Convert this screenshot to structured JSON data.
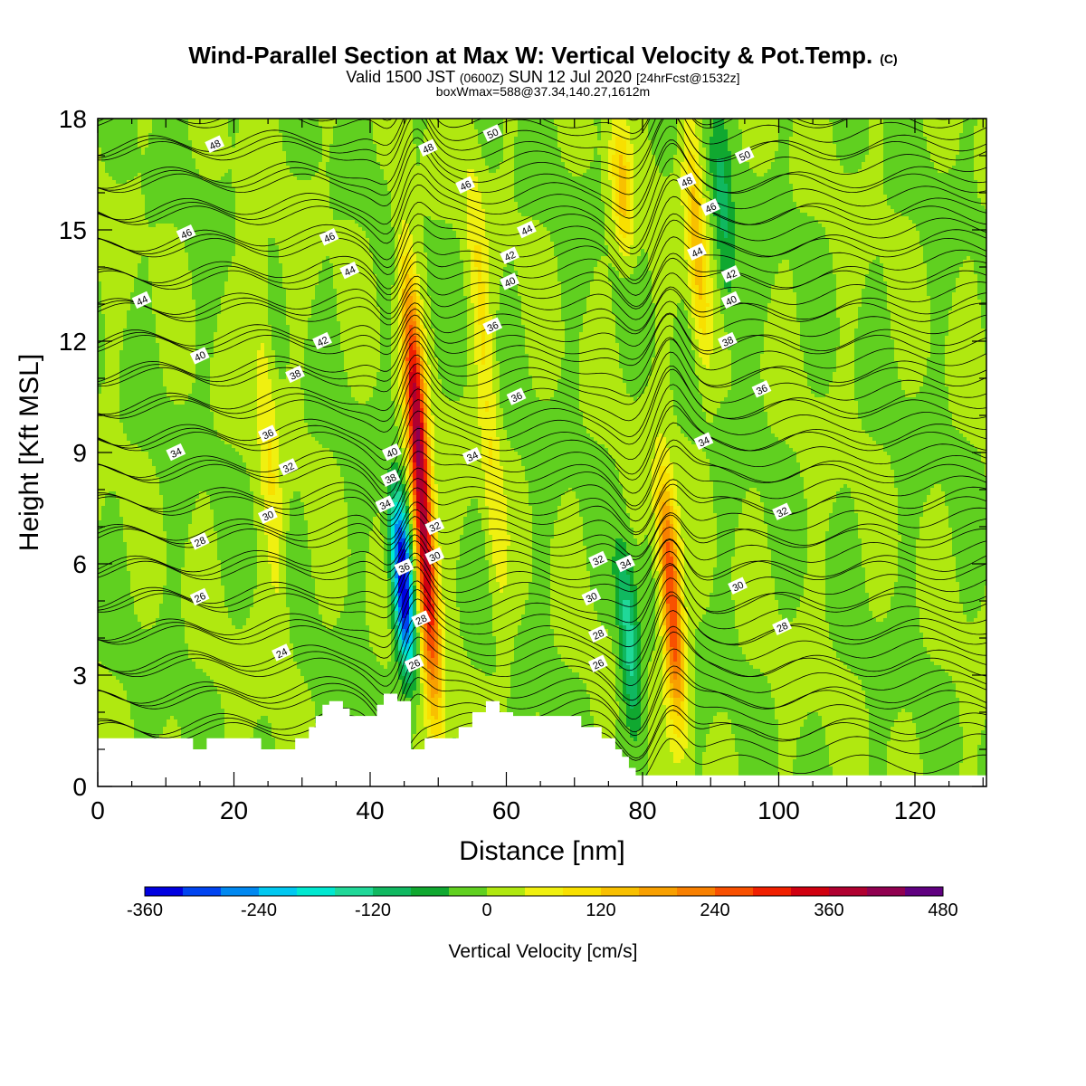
{
  "header": {
    "title_main": "Wind-Parallel Section at Max W: Vertical Velocity & Pot.Temp.",
    "title_mark": "(C)",
    "subtitle_a": "Valid 1500 JST ",
    "subtitle_b": "(0600Z)",
    "subtitle_c": " SUN 12 Jul 2020 ",
    "subtitle_d": "[24hrFcst@1532z]",
    "info": "boxWmax=588@37.34,140.27,1612m"
  },
  "chart_data": {
    "type": "heatmap",
    "title": "Wind-Parallel Section at Max W: Vertical Velocity & Pot.Temp.",
    "xlabel": "Distance [nm]",
    "ylabel": "Height [Kft MSL]",
    "xlim": [
      0,
      130.5
    ],
    "ylim": [
      0,
      18
    ],
    "xticks": [
      "0",
      "20",
      "40",
      "60",
      "80",
      "100",
      "120"
    ],
    "yticks": [
      "0",
      "3",
      "6",
      "9",
      "12",
      "15",
      "18"
    ],
    "colorbar": {
      "label": "Vertical Velocity [cm/s]",
      "tick_labels": [
        "-360",
        "-240",
        "-120",
        "0",
        "120",
        "240",
        "360",
        "480"
      ],
      "levels": [
        -360,
        -320,
        -280,
        -240,
        -200,
        -160,
        -120,
        -80,
        -40,
        0,
        40,
        80,
        120,
        160,
        200,
        240,
        280,
        320,
        360,
        400,
        440,
        480
      ],
      "colors": [
        "#0000e0",
        "#0044f0",
        "#0088f0",
        "#00c8f0",
        "#00e8d0",
        "#20d898",
        "#10b860",
        "#10a830",
        "#60d020",
        "#b0e810",
        "#f0f010",
        "#f8e000",
        "#f8c000",
        "#f8a000",
        "#f88000",
        "#f85000",
        "#f02000",
        "#d00010",
        "#b00030",
        "#900050",
        "#600080"
      ]
    },
    "w_features": [
      {
        "kind": "updraft",
        "x": 47.5,
        "z_bottom": 2.0,
        "z_top": 13.8,
        "peak_cm_s": 420
      },
      {
        "kind": "downdraft",
        "x": 44.8,
        "z_bottom": 3.0,
        "z_top": 8.0,
        "peak_cm_s": -380
      },
      {
        "kind": "updraft",
        "x": 84.2,
        "z_bottom": 1.6,
        "z_top": 8.5,
        "peak_cm_s": 300
      },
      {
        "kind": "downdraft",
        "x": 78.0,
        "z_bottom": 1.5,
        "z_top": 6.5,
        "peak_cm_s": -150
      },
      {
        "kind": "updraft",
        "x": 77.0,
        "z_bottom": 14.0,
        "z_top": 18.0,
        "peak_cm_s": 130
      },
      {
        "kind": "updraft",
        "x": 88.0,
        "z_bottom": 11.0,
        "z_top": 18.0,
        "peak_cm_s": 140
      },
      {
        "kind": "updraft",
        "x": 57.0,
        "z_bottom": 4.0,
        "z_top": 18.0,
        "peak_cm_s": 80
      },
      {
        "kind": "updraft",
        "x": 25.0,
        "z_bottom": 3.0,
        "z_top": 16.0,
        "peak_cm_s": 70
      },
      {
        "kind": "downdraft",
        "x": 92.0,
        "z_bottom": 12.0,
        "z_top": 18.0,
        "peak_cm_s": -90
      }
    ],
    "terrain": {
      "x": [
        0,
        14,
        14,
        16,
        16,
        24,
        24,
        29,
        29,
        31,
        31,
        32,
        32,
        33,
        33,
        34,
        34,
        36,
        36,
        37,
        37,
        41,
        41,
        42,
        42,
        44,
        44,
        46,
        46,
        48,
        48,
        53,
        53,
        55,
        55,
        57,
        57,
        59,
        59,
        61,
        61,
        71,
        71,
        74,
        74,
        76,
        76,
        77,
        77,
        78,
        78,
        79,
        79,
        80,
        80,
        130.5
      ],
      "z": [
        1.3,
        1.3,
        1.0,
        1.0,
        1.3,
        1.3,
        1.0,
        1.0,
        1.3,
        1.3,
        1.6,
        1.6,
        1.9,
        1.9,
        2.2,
        2.2,
        2.3,
        2.3,
        2.1,
        2.1,
        1.9,
        1.9,
        2.2,
        2.2,
        2.5,
        2.5,
        2.3,
        2.3,
        1.0,
        1.0,
        1.3,
        1.3,
        1.6,
        1.6,
        2.0,
        2.0,
        2.3,
        2.3,
        2.0,
        2.0,
        1.9,
        1.9,
        1.6,
        1.6,
        1.3,
        1.3,
        1.0,
        1.0,
        0.8,
        0.8,
        0.5,
        0.5,
        0.3,
        0.3,
        0.3,
        0.3
      ]
    },
    "theta_contour_labels": [
      {
        "value": "48",
        "x": 17.2,
        "z": 17.3
      },
      {
        "value": "46",
        "x": 13.0,
        "z": 14.9
      },
      {
        "value": "44",
        "x": 6.5,
        "z": 13.1
      },
      {
        "value": "40",
        "x": 15.0,
        "z": 11.6
      },
      {
        "value": "34",
        "x": 11.5,
        "z": 9.0
      },
      {
        "value": "28",
        "x": 15.0,
        "z": 6.6
      },
      {
        "value": "26",
        "x": 15.0,
        "z": 5.1
      },
      {
        "value": "24",
        "x": 27.0,
        "z": 3.6
      },
      {
        "value": "30",
        "x": 25.0,
        "z": 7.3
      },
      {
        "value": "32",
        "x": 28.0,
        "z": 8.6
      },
      {
        "value": "36",
        "x": 25.0,
        "z": 9.5
      },
      {
        "value": "38",
        "x": 29.0,
        "z": 11.1
      },
      {
        "value": "42",
        "x": 33.0,
        "z": 12.0
      },
      {
        "value": "44",
        "x": 37.0,
        "z": 13.9
      },
      {
        "value": "46",
        "x": 34.0,
        "z": 14.8
      },
      {
        "value": "40",
        "x": 43.2,
        "z": 9.0
      },
      {
        "value": "38",
        "x": 43.0,
        "z": 8.3
      },
      {
        "value": "34",
        "x": 42.2,
        "z": 7.6
      },
      {
        "value": "36",
        "x": 45.0,
        "z": 5.9
      },
      {
        "value": "28",
        "x": 47.5,
        "z": 4.5
      },
      {
        "value": "26",
        "x": 46.5,
        "z": 3.3
      },
      {
        "value": "32",
        "x": 49.5,
        "z": 7.0
      },
      {
        "value": "30",
        "x": 49.5,
        "z": 6.2
      },
      {
        "value": "34",
        "x": 55.0,
        "z": 8.9
      },
      {
        "value": "48",
        "x": 48.5,
        "z": 17.2
      },
      {
        "value": "46",
        "x": 54.0,
        "z": 16.2
      },
      {
        "value": "50",
        "x": 58.0,
        "z": 17.6
      },
      {
        "value": "44",
        "x": 63.0,
        "z": 15.0
      },
      {
        "value": "42",
        "x": 60.5,
        "z": 14.3
      },
      {
        "value": "40",
        "x": 60.5,
        "z": 13.6
      },
      {
        "value": "36",
        "x": 58.0,
        "z": 12.4
      },
      {
        "value": "36",
        "x": 61.5,
        "z": 10.5
      },
      {
        "value": "32",
        "x": 73.5,
        "z": 6.1
      },
      {
        "value": "30",
        "x": 72.5,
        "z": 5.1
      },
      {
        "value": "28",
        "x": 73.5,
        "z": 4.1
      },
      {
        "value": "26",
        "x": 73.5,
        "z": 3.3
      },
      {
        "value": "34",
        "x": 77.5,
        "z": 6.0
      },
      {
        "value": "48",
        "x": 86.5,
        "z": 16.3
      },
      {
        "value": "46",
        "x": 90.0,
        "z": 15.6
      },
      {
        "value": "44",
        "x": 88.0,
        "z": 14.4
      },
      {
        "value": "42",
        "x": 93.0,
        "z": 13.8
      },
      {
        "value": "40",
        "x": 93.0,
        "z": 13.1
      },
      {
        "value": "38",
        "x": 92.5,
        "z": 12.0
      },
      {
        "value": "50",
        "x": 95.0,
        "z": 17.0
      },
      {
        "value": "36",
        "x": 97.5,
        "z": 10.7
      },
      {
        "value": "34",
        "x": 89.0,
        "z": 9.3
      },
      {
        "value": "32",
        "x": 100.5,
        "z": 7.4
      },
      {
        "value": "30",
        "x": 94.0,
        "z": 5.4
      },
      {
        "value": "28",
        "x": 100.5,
        "z": 4.3
      }
    ]
  }
}
